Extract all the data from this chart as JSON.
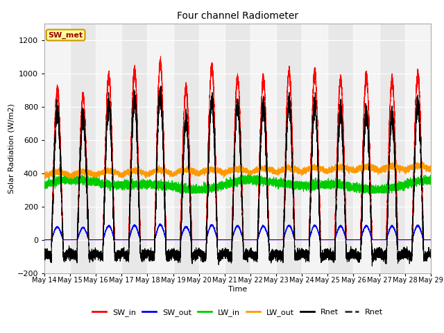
{
  "title": "Four channel Radiometer",
  "xlabel": "Time",
  "ylabel": "Solar Radiation (W/m2)",
  "ylim": [
    -200,
    1300
  ],
  "xlim": [
    0,
    15
  ],
  "yticks": [
    -200,
    0,
    200,
    400,
    600,
    800,
    1000,
    1200
  ],
  "xtick_labels": [
    "May 14",
    "May 15",
    "May 16",
    "May 17",
    "May 18",
    "May 19",
    "May 20",
    "May 21",
    "May 22",
    "May 23",
    "May 24",
    "May 25",
    "May 26",
    "May 27",
    "May 28",
    "May 29"
  ],
  "annotation_text": "SW_met",
  "annotation_box_color": "#ffff99",
  "annotation_text_color": "#990000",
  "colors": {
    "SW_in": "#ff0000",
    "SW_out": "#0000ff",
    "LW_in": "#00cc00",
    "LW_out": "#ff9900",
    "Rnet": "#000000"
  },
  "legend_entries": [
    "SW_in",
    "SW_out",
    "LW_in",
    "LW_out",
    "Rnet",
    "Rnet"
  ],
  "legend_colors": [
    "#ff0000",
    "#0000ff",
    "#00cc00",
    "#ff9900",
    "#000000",
    "#333333"
  ],
  "n_days": 15,
  "bg_gray": "#e8e8e8",
  "bg_white": "#f5f5f5",
  "fig_background": "#ffffff"
}
